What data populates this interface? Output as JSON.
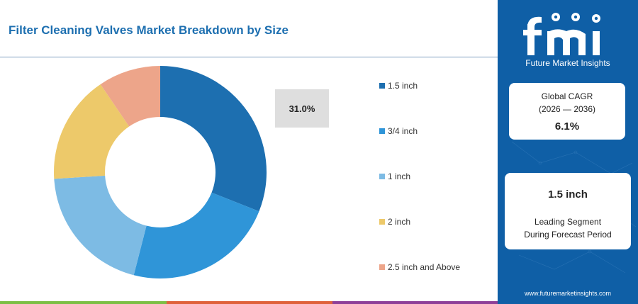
{
  "title": "Filter Cleaning Valves Market Breakdown by Size",
  "callout_value": "31.0%",
  "chart_data": {
    "type": "pie",
    "donut": true,
    "categories": [
      "1.5 inch",
      "3/4 inch",
      "1 inch",
      "2 inch",
      "2.5 inch and Above"
    ],
    "values": [
      31.0,
      23.0,
      20.0,
      16.5,
      9.5
    ],
    "colors": [
      "#1d6fb0",
      "#2f95d8",
      "#7dbbe4",
      "#edc96a",
      "#eda58a"
    ],
    "legend": "right"
  },
  "sidebar": {
    "brand_name": "Future Market Insights",
    "cagr_label": "Global CAGR",
    "cagr_period": "(2026 — 2036)",
    "cagr_value": "6.1%",
    "leading_segment": "1.5 inch",
    "leading_line1": "Leading Segment",
    "leading_line2": "During Forecast Period",
    "website": "www.futuremarketinsights.com"
  },
  "colors": {
    "panel": "#0f5fa6",
    "title": "#1d6fb0",
    "bottom_bar": [
      "#7cbf45",
      "#e0613a",
      "#8e3f98",
      "#1d6fb0"
    ]
  }
}
